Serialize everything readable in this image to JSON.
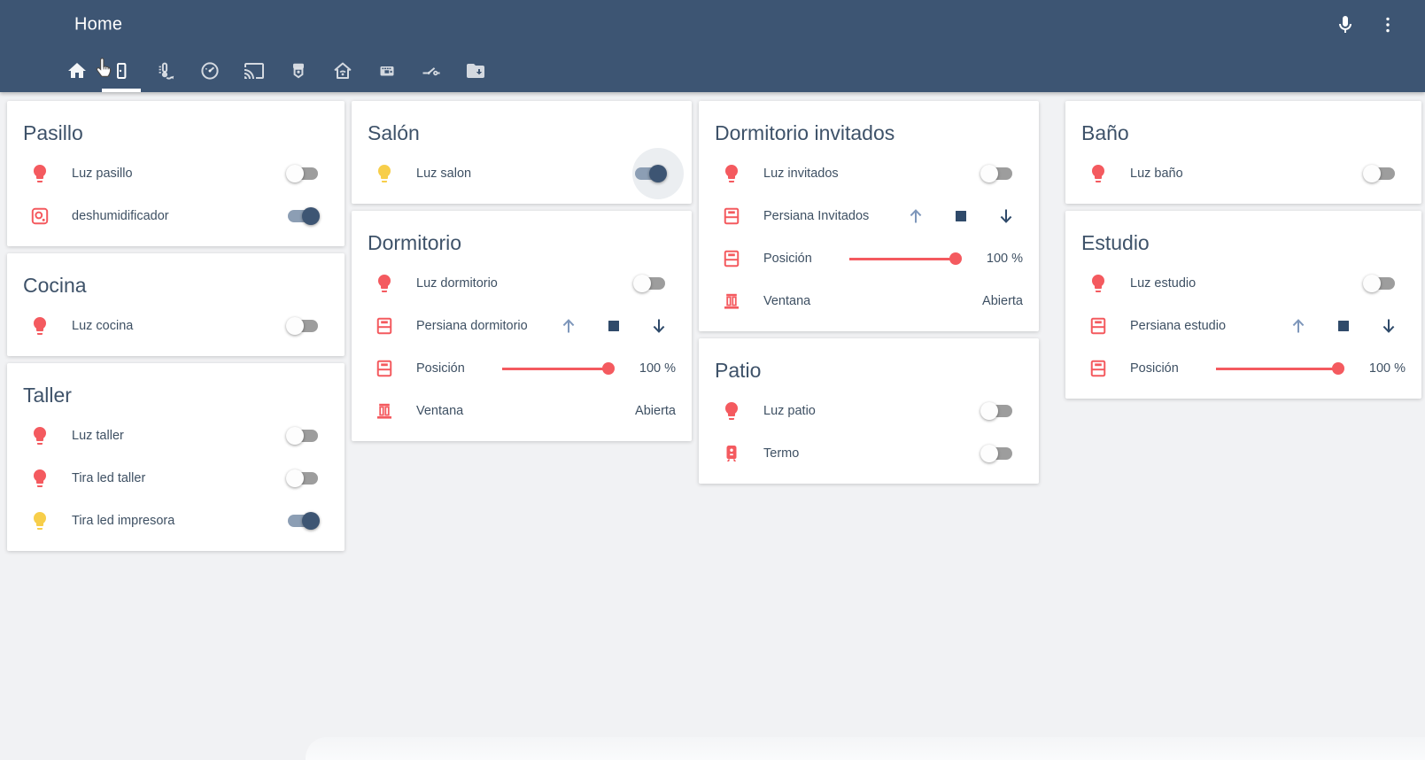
{
  "header": {
    "title": "Home",
    "tabs": [
      {
        "name": "home",
        "active": false
      },
      {
        "name": "door",
        "active": true
      },
      {
        "name": "thermometer",
        "active": false
      },
      {
        "name": "gauge",
        "active": false
      },
      {
        "name": "cast",
        "active": false
      },
      {
        "name": "camera",
        "active": false
      },
      {
        "name": "home-wifi",
        "active": false
      },
      {
        "name": "chip",
        "active": false
      },
      {
        "name": "electric-switch",
        "active": false
      },
      {
        "name": "folder-download",
        "active": false
      }
    ],
    "actions": {
      "microphone": "microphone-icon",
      "menu": "dots-vertical-icon"
    }
  },
  "colors": {
    "header_bg": "#3D5573",
    "page_bg": "#F1F2F4",
    "card_bg": "#FFFFFF",
    "accent_red": "#F45A5F",
    "accent_yellow": "#F7CE4A",
    "toggle_on_knob": "#3D5573",
    "toggle_on_track": "#8C9EB4",
    "toggle_off_knob": "#FDFDFD",
    "toggle_off_track": "#9D9D9D",
    "cover_up": "#7E97BB",
    "cover_down": "#2F4A6A",
    "text": "#3E5269"
  },
  "cards": {
    "pasillo": {
      "title": "Pasillo",
      "rows": [
        {
          "icon": "lightbulb",
          "icon_state": "off",
          "label": "Luz pasillo",
          "control": {
            "type": "toggle",
            "state": "off"
          }
        },
        {
          "icon": "air-humidifier",
          "icon_state": "off",
          "label": "deshumidificador",
          "control": {
            "type": "toggle",
            "state": "on"
          }
        }
      ]
    },
    "cocina": {
      "title": "Cocina",
      "rows": [
        {
          "icon": "lightbulb",
          "icon_state": "off",
          "label": "Luz cocina",
          "control": {
            "type": "toggle",
            "state": "off"
          }
        }
      ]
    },
    "taller": {
      "title": "Taller",
      "rows": [
        {
          "icon": "lightbulb",
          "icon_state": "off",
          "label": "Luz taller",
          "control": {
            "type": "toggle",
            "state": "off"
          }
        },
        {
          "icon": "lightbulb",
          "icon_state": "off",
          "label": "Tira led taller",
          "control": {
            "type": "toggle",
            "state": "off"
          }
        },
        {
          "icon": "lightbulb",
          "icon_state": "on",
          "label": "Tira led impresora",
          "control": {
            "type": "toggle",
            "state": "on"
          }
        }
      ]
    },
    "salon": {
      "title": "Salón",
      "rows": [
        {
          "icon": "lightbulb",
          "icon_state": "on",
          "label": "Luz salon",
          "control": {
            "type": "toggle",
            "state": "on",
            "ripple": true
          }
        }
      ]
    },
    "dormitorio": {
      "title": "Dormitorio",
      "rows": [
        {
          "icon": "lightbulb",
          "icon_state": "off",
          "label": "Luz dormitorio",
          "control": {
            "type": "toggle",
            "state": "off"
          }
        },
        {
          "icon": "window-shutter",
          "label": "Persiana dormitorio",
          "control": {
            "type": "cover-buttons",
            "buttons": [
              "open",
              "stop",
              "close"
            ]
          }
        },
        {
          "icon": "window-shutter",
          "label": "Posición",
          "control": {
            "type": "slider",
            "percent": 100,
            "value": "100 %"
          }
        },
        {
          "icon": "window-open",
          "label": "Ventana",
          "control": {
            "type": "state",
            "value": "Abierta"
          }
        }
      ]
    },
    "dormitorio_invitados": {
      "title": "Dormitorio invitados",
      "rows": [
        {
          "icon": "lightbulb",
          "icon_state": "off",
          "label": "Luz invitados",
          "control": {
            "type": "toggle",
            "state": "off"
          }
        },
        {
          "icon": "window-shutter",
          "label": "Persiana Invitados",
          "control": {
            "type": "cover-buttons",
            "buttons": [
              "open",
              "stop",
              "close"
            ]
          }
        },
        {
          "icon": "window-shutter",
          "label": "Posición",
          "control": {
            "type": "slider",
            "percent": 100,
            "value": "100 %"
          }
        },
        {
          "icon": "window-open",
          "label": "Ventana",
          "control": {
            "type": "state",
            "value": "Abierta"
          }
        }
      ]
    },
    "patio": {
      "title": "Patio",
      "rows": [
        {
          "icon": "lightbulb",
          "icon_state": "off",
          "label": "Luz patio",
          "control": {
            "type": "toggle",
            "state": "off"
          }
        },
        {
          "icon": "water-boiler",
          "icon_state": "off",
          "label": "Termo",
          "control": {
            "type": "toggle",
            "state": "off"
          }
        }
      ]
    },
    "bano": {
      "title": "Baño",
      "rows": [
        {
          "icon": "lightbulb",
          "icon_state": "off",
          "label": "Luz baño",
          "control": {
            "type": "toggle",
            "state": "off"
          }
        }
      ]
    },
    "estudio": {
      "title": "Estudio",
      "rows": [
        {
          "icon": "lightbulb",
          "icon_state": "off",
          "label": "Luz estudio",
          "control": {
            "type": "toggle",
            "state": "off"
          }
        },
        {
          "icon": "window-shutter",
          "label": "Persiana estudio",
          "control": {
            "type": "cover-buttons",
            "buttons": [
              "open",
              "stop",
              "close"
            ]
          }
        },
        {
          "icon": "window-shutter",
          "label": "Posición",
          "control": {
            "type": "slider",
            "percent": 100,
            "value": "100 %"
          }
        }
      ]
    }
  }
}
